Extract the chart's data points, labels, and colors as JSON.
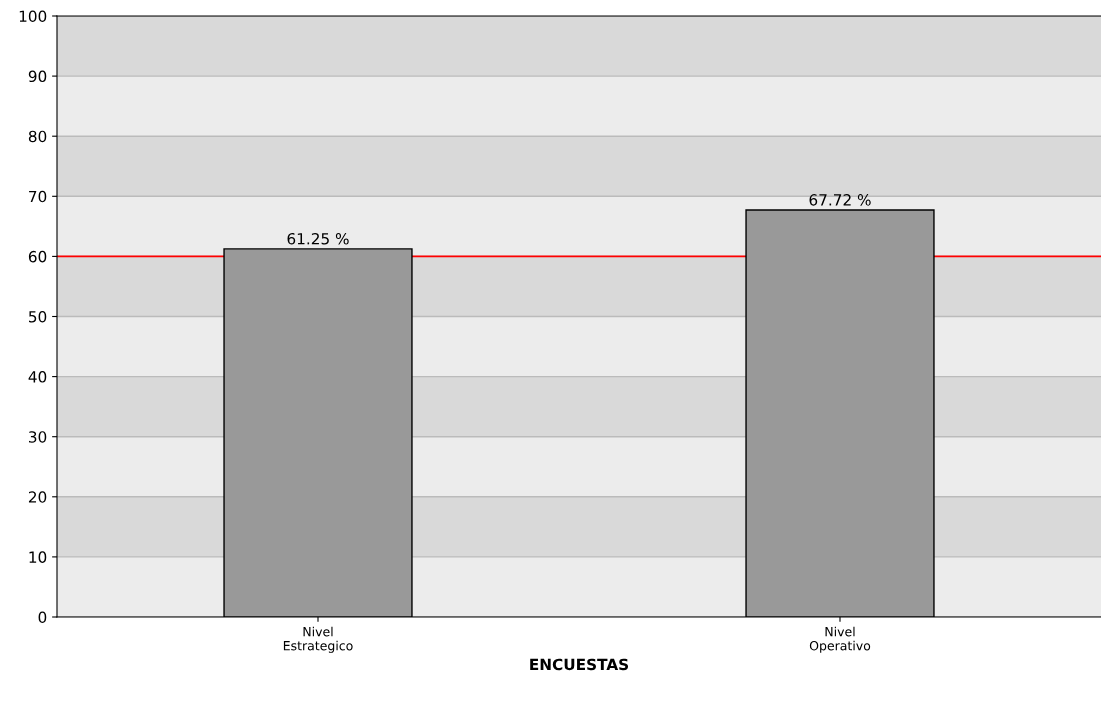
{
  "chart_data": {
    "type": "bar",
    "xlabel": "ENCUESTAS",
    "categories": [
      "Nivel\nEstrategico",
      "Nivel\nOperativo"
    ],
    "values": [
      61.25,
      67.72
    ],
    "color": "#999999",
    "value_labels": [
      "61.25 %",
      "67.72 %"
    ],
    "ylim": [
      0,
      100
    ],
    "yticks": [
      0,
      10,
      20,
      30,
      40,
      50,
      60,
      70,
      80,
      90,
      100
    ],
    "grid": "y",
    "legend": false,
    "ref_lines": [
      {
        "axis": "y",
        "value": 60,
        "color": "#ff0000"
      }
    ],
    "bands": [
      {
        "axis": "y",
        "from": 10,
        "to": 20,
        "color": "#d9d9d9"
      },
      {
        "axis": "y",
        "from": 30,
        "to": 40,
        "color": "#d9d9d9"
      },
      {
        "axis": "y",
        "from": 50,
        "to": 60,
        "color": "#d9d9d9"
      },
      {
        "axis": "y",
        "from": 70,
        "to": 80,
        "color": "#d9d9d9"
      },
      {
        "axis": "y",
        "from": 90,
        "to": 100,
        "color": "#d9d9d9"
      }
    ]
  }
}
